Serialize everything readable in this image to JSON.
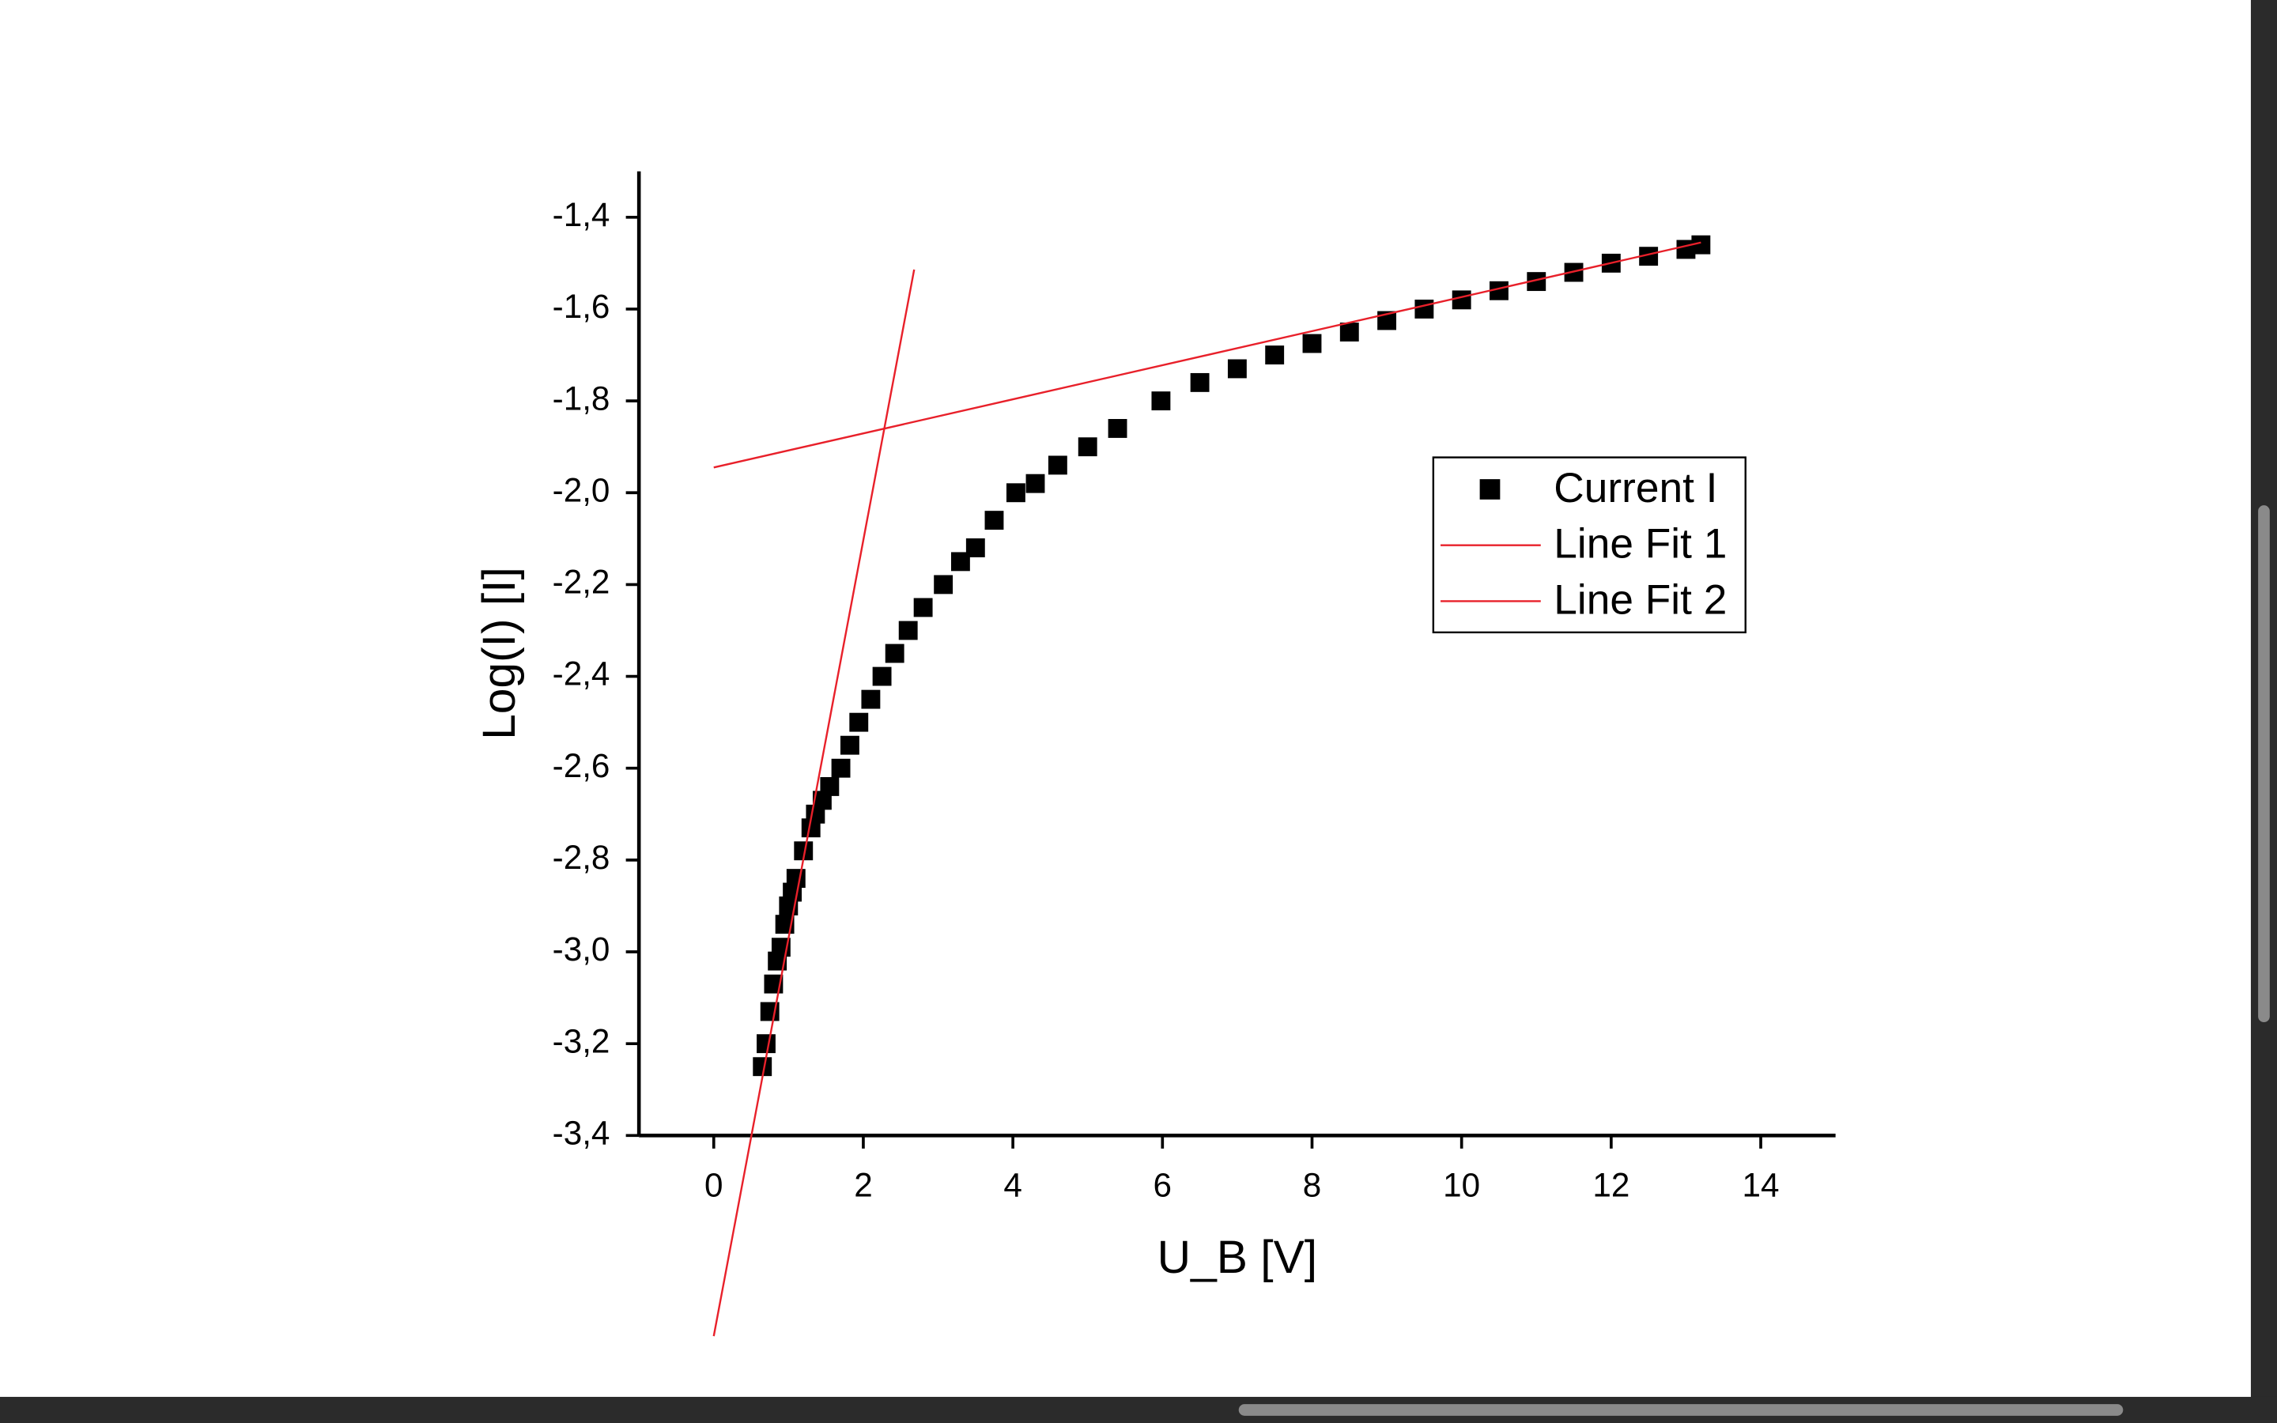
{
  "chart_data": {
    "type": "scatter",
    "x_label": "U_B [V]",
    "y_label": "Log(I) [I]",
    "xlim": [
      -1,
      15
    ],
    "ylim": [
      -3.4,
      -1.3
    ],
    "xticks": [
      0,
      2,
      4,
      6,
      8,
      10,
      12,
      14
    ],
    "yticks": [
      {
        "value": -3.4,
        "label": "-3,4"
      },
      {
        "value": -3.2,
        "label": "-3,2"
      },
      {
        "value": -3.0,
        "label": "-3,0"
      },
      {
        "value": -2.8,
        "label": "-2,8"
      },
      {
        "value": -2.6,
        "label": "-2,6"
      },
      {
        "value": -2.4,
        "label": "-2,4"
      },
      {
        "value": -2.2,
        "label": "-2,2"
      },
      {
        "value": -2.0,
        "label": "-2,0"
      },
      {
        "value": -1.8,
        "label": "-1,8"
      },
      {
        "value": -1.6,
        "label": "-1,6"
      },
      {
        "value": -1.4,
        "label": "-1,4"
      }
    ],
    "grid": false,
    "legend": "right",
    "series": [
      {
        "name": "Current I",
        "type": "scatter",
        "color": "#000000",
        "x": [
          0.65,
          0.7,
          0.75,
          0.8,
          0.85,
          0.9,
          0.95,
          1.0,
          1.05,
          1.1,
          1.2,
          1.3,
          1.36,
          1.45,
          1.55,
          1.7,
          1.82,
          1.94,
          2.1,
          2.25,
          2.42,
          2.6,
          2.8,
          3.07,
          3.3,
          3.5,
          3.75,
          4.04,
          4.3,
          4.6,
          5.0,
          5.4,
          5.98,
          6.5,
          7.0,
          7.5,
          8.0,
          8.5,
          9.0,
          9.5,
          10.0,
          10.5,
          11.0,
          11.5,
          12.0,
          12.5,
          13.0,
          13.2
        ],
        "values": [
          -3.25,
          -3.2,
          -3.13,
          -3.07,
          -3.02,
          -2.99,
          -2.94,
          -2.9,
          -2.87,
          -2.84,
          -2.78,
          -2.73,
          -2.7,
          -2.67,
          -2.64,
          -2.6,
          -2.55,
          -2.5,
          -2.45,
          -2.4,
          -2.35,
          -2.3,
          -2.25,
          -2.2,
          -2.15,
          -2.12,
          -2.06,
          -2.0,
          -1.98,
          -1.94,
          -1.9,
          -1.86,
          -1.8,
          -1.76,
          -1.73,
          -1.7,
          -1.675,
          -1.65,
          -1.625,
          -1.6,
          -1.58,
          -1.56,
          -1.54,
          -1.52,
          -1.5,
          -1.485,
          -1.47,
          -1.46
        ]
      },
      {
        "name": "Line Fit 1",
        "type": "line",
        "color": "#e8202a",
        "x": [
          0,
          13.2
        ],
        "values": [
          -1.945,
          -1.455
        ]
      },
      {
        "name": "Line Fit 2",
        "type": "line",
        "color": "#e8202a",
        "x": [
          0,
          2.68
        ],
        "values": [
          -3.837,
          -1.514
        ]
      }
    ]
  }
}
